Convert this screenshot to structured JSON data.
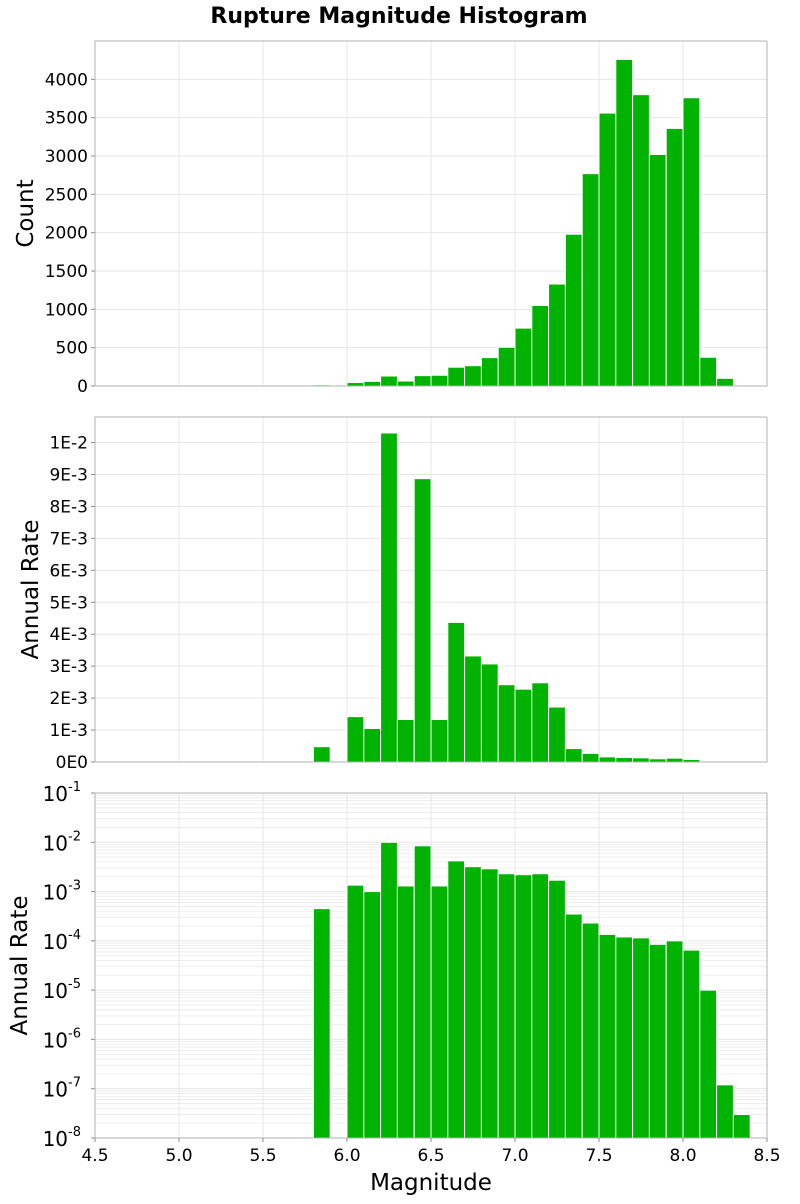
{
  "chart_data": [
    {
      "type": "bar",
      "title": "Rupture Magnitude Histogram",
      "ylabel": "Count",
      "xlim": [
        4.5,
        8.5
      ],
      "ylim": [
        0,
        4500
      ],
      "yscale": "linear",
      "grid": true,
      "color": "#00b300",
      "bin_width": 0.1,
      "y_ticks": [
        0,
        500,
        1000,
        1500,
        2000,
        2500,
        3000,
        3500,
        4000
      ],
      "y_tick_labels": [
        "0",
        "500",
        "1000",
        "1500",
        "2000",
        "2500",
        "3000",
        "3500",
        "4000"
      ],
      "x": [
        5.85,
        5.95,
        6.05,
        6.15,
        6.25,
        6.35,
        6.45,
        6.55,
        6.65,
        6.75,
        6.85,
        6.95,
        7.05,
        7.15,
        7.25,
        7.35,
        7.45,
        7.55,
        7.65,
        7.75,
        7.85,
        7.95,
        8.05,
        8.15,
        8.25,
        8.35
      ],
      "values": [
        15,
        0,
        45,
        60,
        130,
        65,
        135,
        140,
        245,
        265,
        370,
        505,
        755,
        1050,
        1330,
        1980,
        2770,
        3560,
        4260,
        3800,
        3020,
        3360,
        3760,
        375,
        100,
        0
      ]
    },
    {
      "type": "bar",
      "ylabel": "Annual Rate",
      "xlim": [
        4.5,
        8.5
      ],
      "ylim": [
        0,
        0.0108
      ],
      "yscale": "linear",
      "grid": true,
      "color": "#00b300",
      "bin_width": 0.1,
      "y_ticks": [
        0,
        0.001,
        0.002,
        0.003,
        0.004,
        0.005,
        0.006,
        0.007,
        0.008,
        0.009,
        0.01
      ],
      "y_tick_labels": [
        "0E0",
        "1E-3",
        "2E-3",
        "3E-3",
        "4E-3",
        "5E-3",
        "6E-3",
        "7E-3",
        "8E-3",
        "9E-3",
        "1E-2"
      ],
      "x": [
        5.85,
        5.95,
        6.05,
        6.15,
        6.25,
        6.35,
        6.45,
        6.55,
        6.65,
        6.75,
        6.85,
        6.95,
        7.05,
        7.15,
        7.25,
        7.35,
        7.45,
        7.55,
        7.65,
        7.75,
        7.85,
        7.95,
        8.05,
        8.15,
        8.25,
        8.35
      ],
      "values": [
        0.00048,
        0,
        0.00142,
        0.00105,
        0.0103,
        0.00133,
        0.00887,
        0.00133,
        0.00437,
        0.00332,
        0.00307,
        0.00242,
        0.00228,
        0.00248,
        0.00172,
        0.00042,
        0.00027,
        0.00016,
        0.00014,
        0.00013,
        0.0001,
        0.00012,
        8e-05,
        1e-05,
        1e-07,
        3e-08
      ]
    },
    {
      "type": "bar",
      "xlabel": "Magnitude",
      "ylabel": "Annual Rate",
      "xlim": [
        4.5,
        8.5
      ],
      "ylim": [
        1e-08,
        0.1
      ],
      "yscale": "log",
      "grid": true,
      "color": "#00b300",
      "bin_width": 0.1,
      "x_ticks": [
        4.5,
        5.0,
        5.5,
        6.0,
        6.5,
        7.0,
        7.5,
        8.0,
        8.5
      ],
      "x_tick_labels": [
        "4.5",
        "5.0",
        "5.5",
        "6.0",
        "6.5",
        "7.0",
        "7.5",
        "8.0",
        "8.5"
      ],
      "y_ticks": [
        1e-08,
        1e-07,
        1e-06,
        1e-05,
        0.0001,
        0.001,
        0.01,
        0.1
      ],
      "y_tick_labels": [
        {
          "base": "10",
          "exp": "-8"
        },
        {
          "base": "10",
          "exp": "-7"
        },
        {
          "base": "10",
          "exp": "-6"
        },
        {
          "base": "10",
          "exp": "-5"
        },
        {
          "base": "10",
          "exp": "-4"
        },
        {
          "base": "10",
          "exp": "-3"
        },
        {
          "base": "10",
          "exp": "-2"
        },
        {
          "base": "10",
          "exp": "-1"
        }
      ],
      "x": [
        5.85,
        5.95,
        6.05,
        6.15,
        6.25,
        6.35,
        6.45,
        6.55,
        6.65,
        6.75,
        6.85,
        6.95,
        7.05,
        7.15,
        7.25,
        7.35,
        7.45,
        7.55,
        7.65,
        7.75,
        7.85,
        7.95,
        8.05,
        8.15,
        8.25,
        8.35
      ],
      "values": [
        0.00045,
        0,
        0.00135,
        0.001,
        0.01,
        0.0013,
        0.0085,
        0.0013,
        0.0042,
        0.0032,
        0.0029,
        0.0023,
        0.0022,
        0.0023,
        0.0017,
        0.00035,
        0.00023,
        0.000135,
        0.00012,
        0.000115,
        8.5e-05,
        0.0001,
        6.5e-05,
        1e-05,
        1.2e-07,
        3e-08
      ]
    }
  ]
}
